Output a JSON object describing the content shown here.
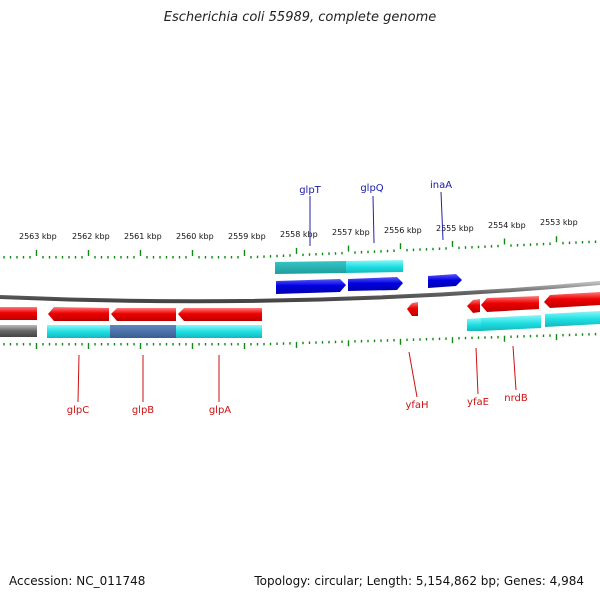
{
  "title": "Escherichia coli 55989, complete genome",
  "footer": {
    "accession": "Accession: NC_011748",
    "summary": "Topology: circular; Length: 5,154,862 bp; Genes: 4,984"
  },
  "colors": {
    "forward_gene": "#0000dd",
    "reverse_gene": "#ee0000",
    "forward_label": "#1a1aa8",
    "reverse_label": "#cc1111",
    "cds_band": "#22dde0",
    "cds_band_dark": "#3c6aa6",
    "backbone": "#777777",
    "tick": "#118811"
  },
  "scale": {
    "labels": [
      "2563 kbp",
      "2562 kbp",
      "2561 kbp",
      "2560 kbp",
      "2559 kbp",
      "2558 kbp",
      "2557 kbp",
      "2556 kbp",
      "2555 kbp",
      "2554 kbp",
      "2553 kbp"
    ]
  },
  "genes_top": [
    {
      "label": "glpT"
    },
    {
      "label": "glpQ"
    },
    {
      "label": "inaA"
    }
  ],
  "genes_bottom": [
    {
      "label": "glpC"
    },
    {
      "label": "glpB"
    },
    {
      "label": "glpA"
    },
    {
      "label": "yfaH"
    },
    {
      "label": "yfaE"
    },
    {
      "label": "nrdB"
    }
  ]
}
